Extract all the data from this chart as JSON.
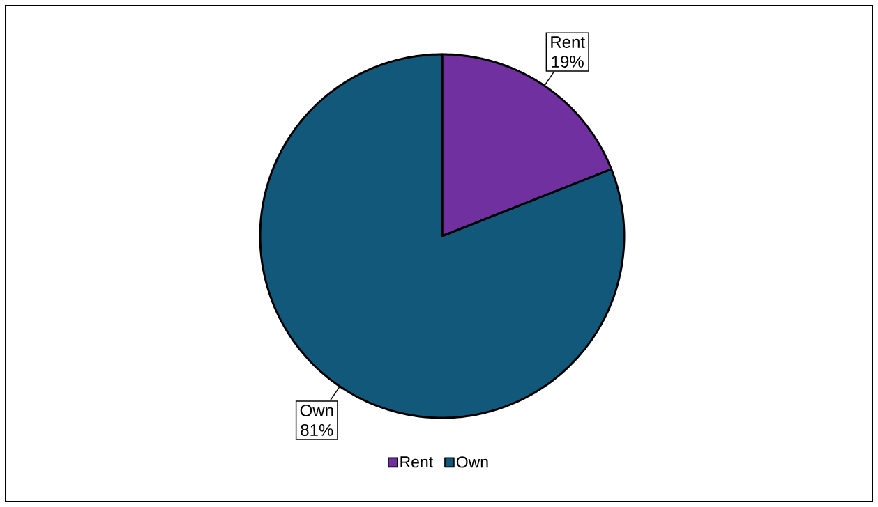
{
  "chart_data": {
    "type": "pie",
    "categories": [
      "Rent",
      "Own"
    ],
    "values": [
      19,
      81
    ],
    "colors": [
      "#7030a0",
      "#11587a"
    ],
    "value_labels": [
      "19%",
      "81%"
    ],
    "legend": "bottom"
  }
}
